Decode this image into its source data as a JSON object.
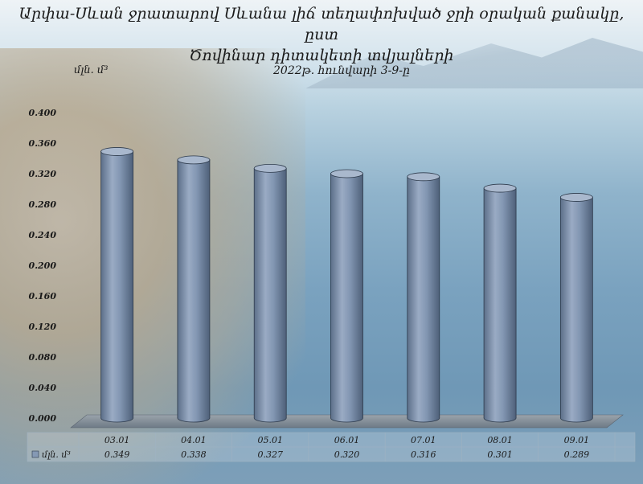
{
  "title_line1": "Արփա-Սևան ջրատարով Սևանա լիճ տեղափոխված ջրի օրական քանակը, ըստ",
  "title_line2": "Ծովինար դիտակետի տվյալների",
  "unit": "մլն. մ³",
  "subtitle": "2022թ. հունվարի 3-9-ը",
  "legend_label": "մլն. մ³",
  "chart_data": {
    "type": "bar",
    "title": "Արփա-Սևան ջրատարով Սևանա լիճ տեղափոխված ջրի օրական քանակը, ըստ Ծովինար դիտակետի տվյալների",
    "subtitle": "2022թ. հունվարի 3-9-ը",
    "ylabel": "մլն. մ³",
    "categories": [
      "03.01",
      "04.01",
      "05.01",
      "06.01",
      "07.01",
      "08.01",
      "09.01"
    ],
    "series": [
      {
        "name": "մլն. մ³",
        "values": [
          0.349,
          0.338,
          0.327,
          0.32,
          0.316,
          0.301,
          0.289
        ]
      }
    ],
    "value_labels": [
      "0.349",
      "0.338",
      "0.327",
      "0.320",
      "0.316",
      "0.301",
      "0.289"
    ],
    "ylim": [
      0,
      0.4
    ],
    "yticks": [
      "0.000",
      "0.040",
      "0.080",
      "0.120",
      "0.160",
      "0.200",
      "0.240",
      "0.280",
      "0.320",
      "0.360",
      "0.400"
    ],
    "bar_color": "#8599b4",
    "bar_shape": "cylinder",
    "legend": "data-table"
  }
}
